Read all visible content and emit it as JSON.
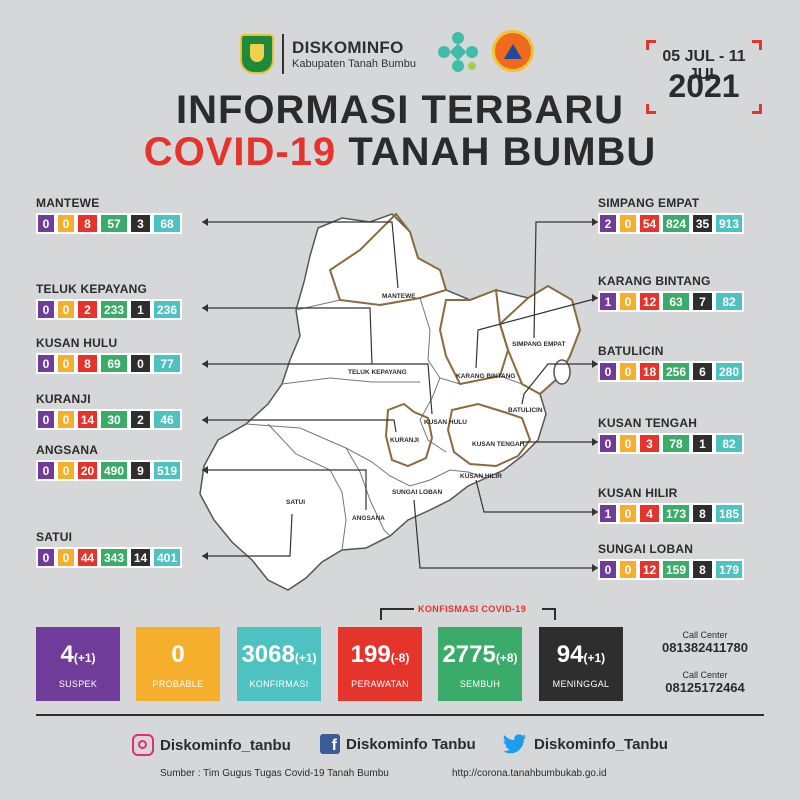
{
  "header": {
    "org_name": "DISKOMINFO",
    "org_sub": "Kabupaten Tanah Bumbu",
    "date_range": "05 JUL - 11 JUL",
    "year": "2021",
    "title_line1": "INFORMASI TERBARU",
    "title_covid": "COVID-19",
    "title_place": "TANAH BUMBU"
  },
  "colors": {
    "suspek": "#6f3c9a",
    "probable": "#f6ae2d",
    "perawatan": "#e5342c",
    "sembuh": "#3bab6a",
    "meninggal": "#2e2e2e",
    "konfirmasi": "#4dc2c0",
    "title_red": "#e5342c"
  },
  "districts": [
    {
      "name": "MANTEWE",
      "values": [
        "0",
        "0",
        "8",
        "57",
        "3",
        "68"
      ]
    },
    {
      "name": "TELUK KEPAYANG",
      "values": [
        "0",
        "0",
        "2",
        "233",
        "1",
        "236"
      ]
    },
    {
      "name": "KUSAN HULU",
      "values": [
        "0",
        "0",
        "8",
        "69",
        "0",
        "77"
      ]
    },
    {
      "name": "KURANJI",
      "values": [
        "0",
        "0",
        "14",
        "30",
        "2",
        "46"
      ]
    },
    {
      "name": "ANGSANA",
      "values": [
        "0",
        "0",
        "20",
        "490",
        "9",
        "519"
      ]
    },
    {
      "name": "SATUI",
      "values": [
        "0",
        "0",
        "44",
        "343",
        "14",
        "401"
      ]
    },
    {
      "name": "SIMPANG EMPAT",
      "values": [
        "2",
        "0",
        "54",
        "824",
        "35",
        "913"
      ]
    },
    {
      "name": "KARANG BINTANG",
      "values": [
        "1",
        "0",
        "12",
        "63",
        "7",
        "82"
      ]
    },
    {
      "name": "BATULICIN",
      "values": [
        "0",
        "0",
        "18",
        "256",
        "6",
        "280"
      ]
    },
    {
      "name": "KUSAN TENGAH",
      "values": [
        "0",
        "0",
        "3",
        "78",
        "1",
        "82"
      ]
    },
    {
      "name": "KUSAN HILIR",
      "values": [
        "1",
        "0",
        "4",
        "173",
        "8",
        "185"
      ]
    },
    {
      "name": "SUNGAI LOBAN",
      "values": [
        "0",
        "0",
        "12",
        "159",
        "8",
        "179"
      ]
    }
  ],
  "map_labels": {
    "mantewe": "MANTEWE",
    "simpang_empat": "SIMPANG EMPAT",
    "karang_bintang": "KARANG BINTANG",
    "teluk_kepayang": "TELUK KEPAYANG",
    "kusan_hulu": "KUSAN HULU",
    "batulicin": "BATULICIN",
    "kuranji": "KURANJI",
    "kusan_tengah": "KUSAN TENGAH",
    "kusan_hilir": "KUSAN HILIR",
    "sungai_loban": "SUNGAI LOBAN",
    "satui": "SATUI",
    "angsana": "ANGSANA"
  },
  "summary": {
    "konfirmasi_header": "KONFISMASI COVID-19",
    "suspek": {
      "value": "4",
      "delta": "(+1)",
      "label": "SUSPEK"
    },
    "probable": {
      "value": "0",
      "delta": "",
      "label": "PROBABLE"
    },
    "konfirmasi": {
      "value": "3068",
      "delta": "(+1)",
      "label": "KONFIRMASI"
    },
    "perawatan": {
      "value": "199",
      "delta": "(-8)",
      "label": "PERAWATAN"
    },
    "sembuh": {
      "value": "2775",
      "delta": "(+8)",
      "label": "SEMBUH"
    },
    "meninggal": {
      "value": "94",
      "delta": "(+1)",
      "label": "MENINGGAL"
    }
  },
  "call_center": [
    {
      "label": "Call Center",
      "number": "081382411780"
    },
    {
      "label": "Call Center",
      "number": "08125172464"
    }
  ],
  "social": {
    "instagram": "Diskominfo_tanbu",
    "facebook": "Diskominfo Tanbu",
    "twitter": "Diskominfo_Tanbu"
  },
  "footer": {
    "source": "Sumber : Tim Gugus Tugas Covid-19 Tanah Bumbu",
    "url": "http://corona.tanahbumbukab.go.id"
  }
}
